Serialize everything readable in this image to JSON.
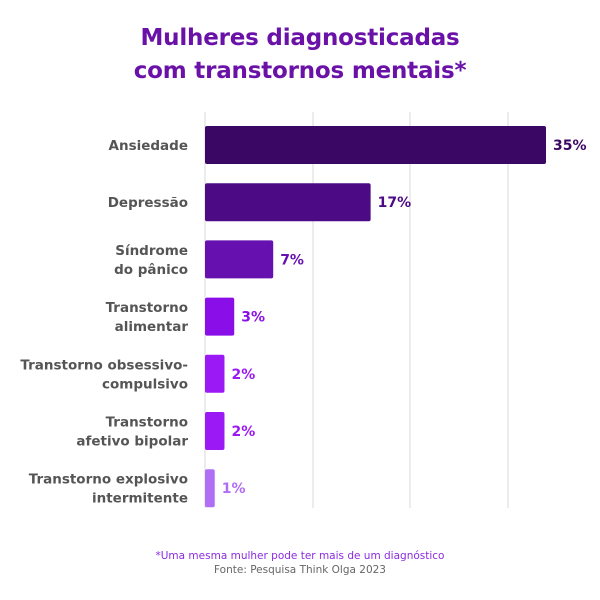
{
  "title": {
    "line1": "Mulheres diagnosticadas",
    "line2": "com transtornos mentais*"
  },
  "footnote": {
    "note": "*Uma mesma mulher pode ter mais de um diagnóstico",
    "source": "Fonte: Pesquisa Think Olga 2023"
  },
  "colors": {
    "title": "#6a12a8",
    "category_label": "#555555",
    "grid": "#d9d9d9",
    "note": "#8a2be2",
    "source": "#666666"
  },
  "chart_data": {
    "type": "bar",
    "orientation": "horizontal",
    "title": "Mulheres diagnosticadas com transtornos mentais*",
    "xlabel": "",
    "ylabel": "",
    "unit": "%",
    "xlim": [
      0,
      35
    ],
    "grid": true,
    "legend": "none",
    "categories": [
      [
        "Ansiedade"
      ],
      [
        "Depressão"
      ],
      [
        "Síndrome",
        "do pânico"
      ],
      [
        "Transtorno",
        "alimentar"
      ],
      [
        "Transtorno obsessivo-",
        "compulsivo"
      ],
      [
        "Transtorno",
        "afetivo bipolar"
      ],
      [
        "Transtorno explosivo",
        "intermitente"
      ]
    ],
    "values": [
      35,
      17,
      7,
      3,
      2,
      2,
      1
    ],
    "value_labels": [
      "35%",
      "17%",
      "7%",
      "3%",
      "2%",
      "2%",
      "1%"
    ],
    "bar_colors": [
      "#3b0764",
      "#4d0a85",
      "#6610b0",
      "#8a0ee8",
      "#9b19f5",
      "#9b19f5",
      "#b06ef5"
    ],
    "label_colors": [
      "#3b0764",
      "#4d0a85",
      "#6610b0",
      "#8a0ee8",
      "#9b19f5",
      "#9b19f5",
      "#b06ef5"
    ]
  }
}
